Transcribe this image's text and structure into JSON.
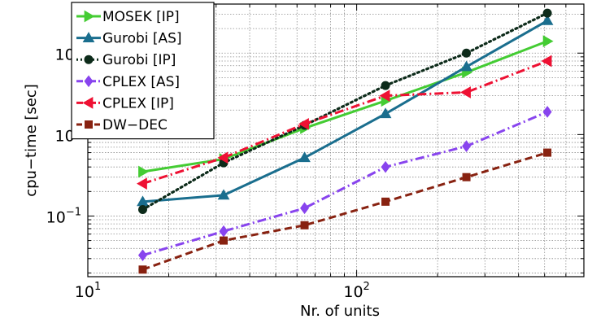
{
  "chart_data": {
    "type": "line",
    "xlabel": "Nr. of units",
    "ylabel": "cpu−time [sec]",
    "xscale": "log",
    "yscale": "log",
    "xlim": [
      10,
      700
    ],
    "ylim": [
      0.018,
      40
    ],
    "grid": true,
    "legend_position": "top-left",
    "x_tick_labels": [
      {
        "base": "10",
        "exp": "1",
        "value": 10
      },
      {
        "base": "10",
        "exp": "2",
        "value": 100
      }
    ],
    "y_tick_labels": [
      {
        "base": "10",
        "exp": "1",
        "value": 10
      },
      {
        "base": "10",
        "exp": "0",
        "value": 1
      },
      {
        "base": "10",
        "exp": "−1",
        "value": 0.1
      }
    ],
    "x": [
      16,
      32,
      64,
      128,
      256,
      512
    ],
    "series": [
      {
        "name": "MOSEK [IP]",
        "color": "#44cc33",
        "dash": "solid",
        "marker": "triangle-right",
        "values": [
          0.35,
          0.5,
          1.2,
          2.6,
          5.8,
          14
        ]
      },
      {
        "name": "Gurobi [AS]",
        "color": "#1a6e8e",
        "dash": "solid",
        "marker": "triangle-up",
        "values": [
          0.15,
          0.18,
          0.52,
          1.8,
          6.8,
          25
        ]
      },
      {
        "name": "Gurobi [IP]",
        "color": "#0d2b1a",
        "dash": "dotted",
        "marker": "circle",
        "values": [
          0.12,
          0.45,
          1.3,
          4.0,
          10,
          31
        ]
      },
      {
        "name": "CPLEX  [AS]",
        "color": "#8844ee",
        "dash": "dashdot",
        "marker": "diamond",
        "values": [
          0.033,
          0.065,
          0.125,
          0.4,
          0.72,
          1.9
        ]
      },
      {
        "name": "CPLEX [IP]",
        "color": "#ee1133",
        "dash": "dashdot",
        "marker": "triangle-left",
        "values": [
          0.25,
          0.52,
          1.35,
          3.0,
          3.3,
          8.0
        ]
      },
      {
        "name": "DW−DEC",
        "color": "#882211",
        "dash": "dashed",
        "marker": "square",
        "values": [
          0.022,
          0.05,
          0.077,
          0.15,
          0.3,
          0.6
        ]
      }
    ]
  }
}
